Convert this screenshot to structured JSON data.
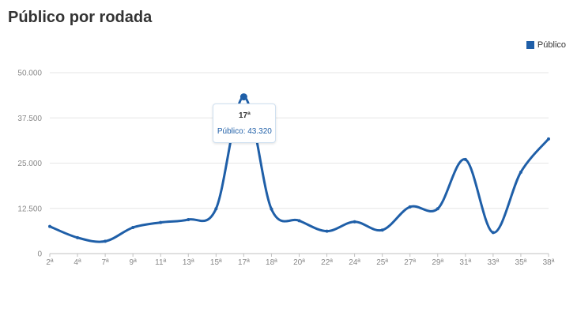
{
  "chart_data": {
    "type": "line",
    "title": "Público por rodada",
    "xlabel": "",
    "ylabel": "",
    "legend": {
      "position": "top-right",
      "entries": [
        "Público"
      ]
    },
    "grid": true,
    "ylim": [
      0,
      50000
    ],
    "yticks": [
      "0",
      "12.500",
      "25.000",
      "37.500",
      "50.000"
    ],
    "categories": [
      "2ª",
      "4ª",
      "7ª",
      "9ª",
      "11ª",
      "13ª",
      "15ª",
      "17ª",
      "18ª",
      "20ª",
      "22ª",
      "24ª",
      "25ª",
      "27ª",
      "29ª",
      "31ª",
      "33ª",
      "35ª",
      "38ª"
    ],
    "series": [
      {
        "name": "Público",
        "color": "#1f5fa8",
        "values": [
          7500,
          4400,
          3400,
          7200,
          8600,
          9400,
          12400,
          43320,
          12300,
          9100,
          6200,
          8800,
          6500,
          12900,
          12400,
          26000,
          5800,
          22500,
          31700
        ]
      }
    ],
    "tooltip": {
      "title": "17ª",
      "text": "Público: 43.320",
      "index": 7
    }
  }
}
